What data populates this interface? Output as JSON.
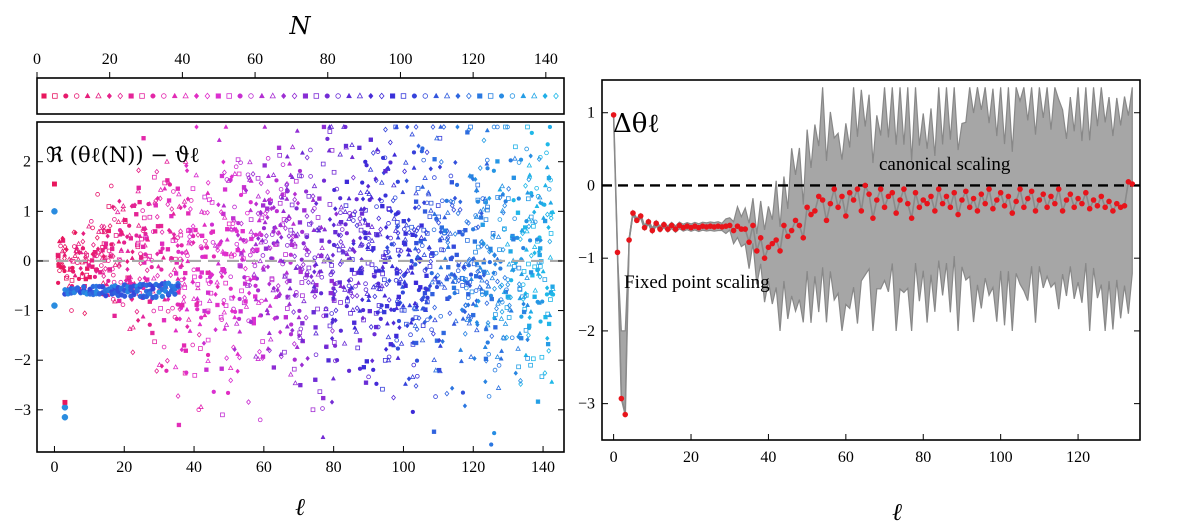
{
  "chart_data": [
    {
      "id": "strip",
      "type": "scatter",
      "title": "",
      "xlabel": "N",
      "xlim": [
        0,
        145
      ],
      "x_ticks": [
        0,
        20,
        40,
        60,
        80,
        100,
        120,
        140
      ],
      "x_tick_labels": [
        "0",
        "20",
        "40",
        "60",
        "80",
        "100",
        "120",
        "140"
      ],
      "marker_count": 48,
      "color_range": [
        "#e8175d",
        "#e030d0",
        "#3a2ad8",
        "#1fb8e8"
      ]
    },
    {
      "id": "left",
      "type": "scatter",
      "title": "",
      "xlabel": "ℓ",
      "ylabel": "",
      "annotation": "ℜ (θℓ(N)) − ϑℓ",
      "xlim": [
        -5,
        146
      ],
      "ylim": [
        -3.85,
        2.8
      ],
      "x_ticks": [
        0,
        20,
        40,
        60,
        80,
        100,
        120,
        140
      ],
      "x_tick_labels": [
        "0",
        "20",
        "40",
        "60",
        "80",
        "100",
        "120",
        "140"
      ],
      "y_ticks": [
        -3,
        -2,
        -1,
        0,
        1,
        2
      ],
      "y_tick_labels": [
        "−3",
        "−2",
        "−1",
        "0",
        "1",
        "2"
      ],
      "reference_line_y": 0,
      "color_range": [
        "#e8175d",
        "#e030d0",
        "#3a2ad8",
        "#1fb8e8"
      ],
      "branch_value": -0.6,
      "first_points": [
        {
          "x": 0,
          "y": 1.0
        },
        {
          "x": 0,
          "y": -0.9
        },
        {
          "x": 3,
          "y": -2.95
        },
        {
          "x": 3,
          "y": -3.15
        }
      ]
    },
    {
      "id": "right",
      "type": "line",
      "title": "",
      "xlabel": "ℓ",
      "annotation": "Δθℓ",
      "xlim": [
        -3,
        136
      ],
      "ylim": [
        -3.5,
        1.45
      ],
      "x_ticks": [
        0,
        20,
        40,
        60,
        80,
        100,
        120
      ],
      "x_tick_labels": [
        "0",
        "20",
        "40",
        "60",
        "80",
        "100",
        "120"
      ],
      "y_ticks": [
        -3,
        -2,
        -1,
        0,
        1
      ],
      "y_tick_labels": [
        "−3",
        "−2",
        "−1",
        "0",
        "1"
      ],
      "reference_line_y": 0,
      "labels": {
        "canonical": "canonical scaling",
        "fixed": "Fixed point scaling"
      },
      "band_color": "#a6a6a6",
      "point_color": "#e8141b",
      "points": [
        {
          "x": 0,
          "y": 0.97
        },
        {
          "x": 1,
          "y": -0.92
        },
        {
          "x": 2,
          "y": -2.93
        },
        {
          "x": 3,
          "y": -3.15
        },
        {
          "x": 4,
          "y": -0.75
        },
        {
          "x": 5,
          "y": -0.38
        },
        {
          "x": 6,
          "y": -0.48
        },
        {
          "x": 7,
          "y": -0.42
        },
        {
          "x": 8,
          "y": -0.58
        },
        {
          "x": 9,
          "y": -0.5
        },
        {
          "x": 10,
          "y": -0.62
        },
        {
          "x": 11,
          "y": -0.52
        },
        {
          "x": 12,
          "y": -0.6
        },
        {
          "x": 13,
          "y": -0.54
        },
        {
          "x": 14,
          "y": -0.6
        },
        {
          "x": 15,
          "y": -0.55
        },
        {
          "x": 16,
          "y": -0.6
        },
        {
          "x": 17,
          "y": -0.55
        },
        {
          "x": 18,
          "y": -0.58
        },
        {
          "x": 19,
          "y": -0.56
        },
        {
          "x": 20,
          "y": -0.58
        },
        {
          "x": 21,
          "y": -0.56
        },
        {
          "x": 22,
          "y": -0.58
        },
        {
          "x": 23,
          "y": -0.56
        },
        {
          "x": 24,
          "y": -0.57
        },
        {
          "x": 25,
          "y": -0.56
        },
        {
          "x": 26,
          "y": -0.57
        },
        {
          "x": 27,
          "y": -0.56
        },
        {
          "x": 28,
          "y": -0.57
        },
        {
          "x": 29,
          "y": -0.56
        },
        {
          "x": 30,
          "y": -0.55
        },
        {
          "x": 31,
          "y": -0.62
        },
        {
          "x": 32,
          "y": -0.56
        },
        {
          "x": 33,
          "y": -0.6
        },
        {
          "x": 34,
          "y": -0.6
        },
        {
          "x": 35,
          "y": -0.78
        },
        {
          "x": 36,
          "y": -0.55
        },
        {
          "x": 37,
          "y": -0.9
        },
        {
          "x": 38,
          "y": -0.72
        },
        {
          "x": 39,
          "y": -1.0
        },
        {
          "x": 40,
          "y": -0.85
        },
        {
          "x": 41,
          "y": -0.8
        },
        {
          "x": 42,
          "y": -0.75
        },
        {
          "x": 43,
          "y": -0.9
        },
        {
          "x": 44,
          "y": -0.55
        },
        {
          "x": 45,
          "y": -0.7
        },
        {
          "x": 46,
          "y": -0.62
        },
        {
          "x": 47,
          "y": -0.48
        },
        {
          "x": 48,
          "y": -0.55
        },
        {
          "x": 49,
          "y": -0.72
        },
        {
          "x": 50,
          "y": -0.3
        },
        {
          "x": 51,
          "y": -0.4
        },
        {
          "x": 52,
          "y": -0.35
        },
        {
          "x": 53,
          "y": -0.15
        },
        {
          "x": 54,
          "y": -0.2
        },
        {
          "x": 55,
          "y": -0.48
        },
        {
          "x": 56,
          "y": -0.25
        },
        {
          "x": 57,
          "y": -0.05
        },
        {
          "x": 58,
          "y": -0.3
        },
        {
          "x": 59,
          "y": -0.15
        },
        {
          "x": 60,
          "y": -0.42
        },
        {
          "x": 61,
          "y": -0.1
        },
        {
          "x": 62,
          "y": -0.2
        },
        {
          "x": 63,
          "y": -0.05
        },
        {
          "x": 64,
          "y": -0.35
        },
        {
          "x": 65,
          "y": 0.0
        },
        {
          "x": 66,
          "y": -0.12
        },
        {
          "x": 67,
          "y": -0.45
        },
        {
          "x": 68,
          "y": -0.2
        },
        {
          "x": 69,
          "y": -0.05
        },
        {
          "x": 70,
          "y": -0.3
        },
        {
          "x": 71,
          "y": -0.15
        },
        {
          "x": 72,
          "y": -0.1
        },
        {
          "x": 73,
          "y": -0.38
        },
        {
          "x": 74,
          "y": -0.2
        },
        {
          "x": 75,
          "y": -0.05
        },
        {
          "x": 76,
          "y": -0.25
        },
        {
          "x": 77,
          "y": -0.45
        },
        {
          "x": 78,
          "y": -0.1
        },
        {
          "x": 79,
          "y": -0.3
        },
        {
          "x": 80,
          "y": -0.2
        },
        {
          "x": 81,
          "y": -0.25
        },
        {
          "x": 82,
          "y": -0.15
        },
        {
          "x": 83,
          "y": -0.35
        },
        {
          "x": 84,
          "y": -0.05
        },
        {
          "x": 85,
          "y": -0.25
        },
        {
          "x": 86,
          "y": -0.15
        },
        {
          "x": 87,
          "y": -0.3
        },
        {
          "x": 88,
          "y": -0.1
        },
        {
          "x": 89,
          "y": -0.4
        },
        {
          "x": 90,
          "y": -0.2
        },
        {
          "x": 91,
          "y": -0.08
        },
        {
          "x": 92,
          "y": -0.3
        },
        {
          "x": 93,
          "y": -0.18
        },
        {
          "x": 94,
          "y": -0.35
        },
        {
          "x": 95,
          "y": -0.12
        },
        {
          "x": 96,
          "y": -0.25
        },
        {
          "x": 97,
          "y": -0.05
        },
        {
          "x": 98,
          "y": -0.32
        },
        {
          "x": 99,
          "y": -0.2
        },
        {
          "x": 100,
          "y": -0.1
        },
        {
          "x": 101,
          "y": -0.28
        },
        {
          "x": 102,
          "y": -0.15
        },
        {
          "x": 103,
          "y": -0.38
        },
        {
          "x": 104,
          "y": -0.22
        },
        {
          "x": 105,
          "y": -0.05
        },
        {
          "x": 106,
          "y": -0.3
        },
        {
          "x": 107,
          "y": -0.18
        },
        {
          "x": 108,
          "y": -0.08
        },
        {
          "x": 109,
          "y": -0.35
        },
        {
          "x": 110,
          "y": -0.2
        },
        {
          "x": 111,
          "y": -0.12
        },
        {
          "x": 112,
          "y": -0.3
        },
        {
          "x": 113,
          "y": -0.15
        },
        {
          "x": 114,
          "y": -0.25
        },
        {
          "x": 115,
          "y": -0.05
        },
        {
          "x": 116,
          "y": -0.35
        },
        {
          "x": 117,
          "y": -0.2
        },
        {
          "x": 118,
          "y": -0.12
        },
        {
          "x": 119,
          "y": -0.3
        },
        {
          "x": 120,
          "y": -0.18
        },
        {
          "x": 121,
          "y": -0.25
        },
        {
          "x": 122,
          "y": -0.1
        },
        {
          "x": 123,
          "y": -0.32
        },
        {
          "x": 124,
          "y": -0.2
        },
        {
          "x": 125,
          "y": -0.28
        },
        {
          "x": 126,
          "y": -0.15
        },
        {
          "x": 127,
          "y": -0.3
        },
        {
          "x": 128,
          "y": -0.22
        },
        {
          "x": 129,
          "y": -0.35
        },
        {
          "x": 130,
          "y": -0.25
        },
        {
          "x": 131,
          "y": -0.3
        },
        {
          "x": 132,
          "y": -0.28
        },
        {
          "x": 133,
          "y": 0.05
        },
        {
          "x": 134,
          "y": 0.02
        }
      ]
    }
  ]
}
